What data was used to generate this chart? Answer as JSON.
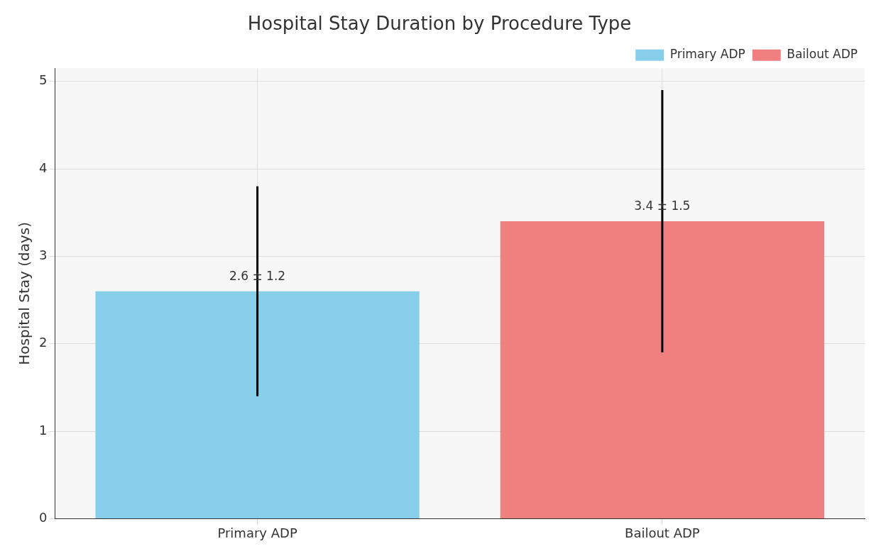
{
  "chart_data": {
    "type": "bar",
    "title": "Hospital Stay Duration by Procedure Type",
    "ylabel": "Hospital Stay (days)",
    "categories": [
      "Primary ADP",
      "Bailout ADP"
    ],
    "series": [
      {
        "name": "Primary ADP",
        "color": "#87ceeb",
        "values": [
          2.6,
          null
        ],
        "errors": [
          1.2,
          null
        ],
        "value_labels": [
          "2.6 ± 1.2",
          null
        ]
      },
      {
        "name": "Bailout ADP",
        "color": "#f08080",
        "values": [
          null,
          3.4
        ],
        "errors": [
          null,
          1.5
        ],
        "value_labels": [
          null,
          "3.4 ± 1.5"
        ]
      }
    ],
    "ylim": [
      0,
      5.15
    ],
    "yticks": [
      0,
      1,
      2,
      3,
      4,
      5
    ],
    "grid": true,
    "legend": "top right"
  }
}
